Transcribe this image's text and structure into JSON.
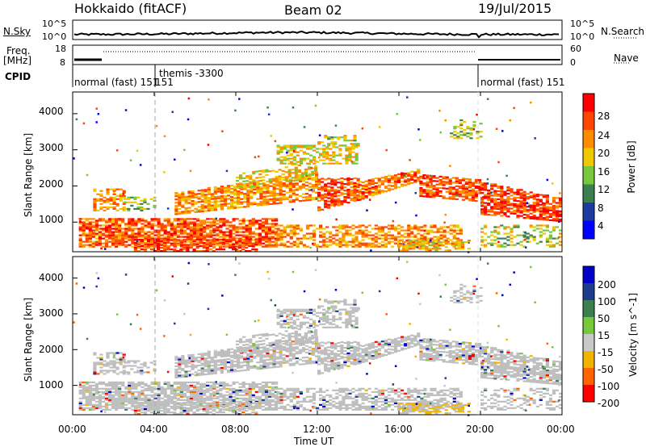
{
  "header": {
    "station": "Hokkaido (fitACF)",
    "beam": "Beam 02",
    "date": "19/Jul/2015"
  },
  "noise_panel": {
    "left_label": "N.Sky",
    "left_ticks": [
      "10^5",
      "10^0"
    ],
    "right_ticks": [
      "10^5",
      "10^0"
    ],
    "right_label": "N.Search"
  },
  "freq_panel": {
    "left_label_1": "Freq.",
    "left_label_2": "[MHz]",
    "left_ticks": [
      "18",
      "8"
    ],
    "right_ticks": [
      "60",
      "0"
    ],
    "right_label": "Nave"
  },
  "cpid": {
    "label": "CPID",
    "segments": [
      "normal (fast) 151",
      "themis -3300",
      "151",
      "normal (fast) 151"
    ]
  },
  "power_panel": {
    "ylabel": "Slant Range [km]",
    "yticks": [
      "4000",
      "3000",
      "2000",
      "1000"
    ],
    "colorbar_label": "Power [dB]",
    "colorbar_ticks": [
      "28",
      "24",
      "20",
      "16",
      "12",
      "8",
      "4"
    ],
    "colors": [
      "#0000ff",
      "#1e3ca0",
      "#3c8050",
      "#78c83c",
      "#f0c800",
      "#ff8c00",
      "#ff4600",
      "#ff0000"
    ]
  },
  "velocity_panel": {
    "ylabel": "Slant Range [km]",
    "yticks": [
      "4000",
      "3000",
      "2000",
      "1000"
    ],
    "colorbar_label": "Velocity [m s^-1]",
    "colorbar_ticks": [
      "200",
      "100",
      "50",
      "15",
      "-15",
      "-50",
      "-100",
      "-200"
    ],
    "colors": [
      "#0000c8",
      "#1e3c8c",
      "#3c8050",
      "#78c83c",
      "#c8c8c8",
      "#f0b400",
      "#ff6400",
      "#ff0000"
    ],
    "ground_scatter_color": "#bebebe"
  },
  "xaxis": {
    "ticks": [
      "00:00",
      "04:00",
      "08:00",
      "12:00",
      "16:00",
      "20:00",
      "00:00"
    ],
    "label": "Time UT"
  },
  "chart_data": {
    "type": "heatmap",
    "x_range_hours": [
      0,
      24
    ],
    "y_range_km": [
      180,
      4600
    ],
    "mode_change_times_ut": [
      "04:00",
      "20:00"
    ],
    "scatter_bands": [
      {
        "range_km": [
          500,
          1100
        ],
        "hours": [
          1,
          10
        ],
        "power_db": 26
      },
      {
        "range_km": [
          1100,
          2300
        ],
        "hours": [
          5,
          20
        ],
        "power_db": 24
      },
      {
        "range_km": [
          2300,
          3200
        ],
        "hours": [
          9,
          14
        ],
        "power_db": 18
      },
      {
        "range_km": [
          1200,
          2200
        ],
        "hours": [
          20,
          24
        ],
        "power_db": 26
      }
    ]
  }
}
